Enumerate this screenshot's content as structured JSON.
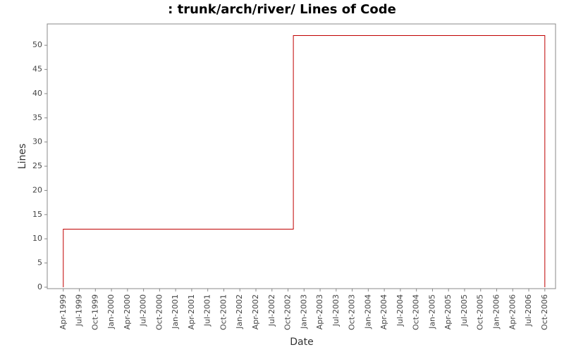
{
  "chart_data": {
    "type": "line",
    "title": ": trunk/arch/river/ Lines of Code",
    "x_label": "Date",
    "y_label": "Lines",
    "color": "#c00000",
    "x": [
      "1999-04",
      "1999-04",
      "2002-11",
      "2002-11",
      "2006-10",
      "2006-10"
    ],
    "values": [
      0,
      12,
      12,
      52,
      52,
      0
    ],
    "xlim": [
      "1999-01",
      "2006-12"
    ],
    "xticks": [
      {
        "value": "1999-04",
        "label": "Apr-1999"
      },
      {
        "value": "1999-07",
        "label": "Jul-1999"
      },
      {
        "value": "1999-10",
        "label": "Oct-1999"
      },
      {
        "value": "2000-01",
        "label": "Jan-2000"
      },
      {
        "value": "2000-04",
        "label": "Apr-2000"
      },
      {
        "value": "2000-07",
        "label": "Jul-2000"
      },
      {
        "value": "2000-10",
        "label": "Oct-2000"
      },
      {
        "value": "2001-01",
        "label": "Jan-2001"
      },
      {
        "value": "2001-04",
        "label": "Apr-2001"
      },
      {
        "value": "2001-07",
        "label": "Jul-2001"
      },
      {
        "value": "2001-10",
        "label": "Oct-2001"
      },
      {
        "value": "2002-01",
        "label": "Jan-2002"
      },
      {
        "value": "2002-04",
        "label": "Apr-2002"
      },
      {
        "value": "2002-07",
        "label": "Jul-2002"
      },
      {
        "value": "2002-10",
        "label": "Oct-2002"
      },
      {
        "value": "2003-01",
        "label": "Jan-2003"
      },
      {
        "value": "2003-04",
        "label": "Apr-2003"
      },
      {
        "value": "2003-07",
        "label": "Jul-2003"
      },
      {
        "value": "2003-10",
        "label": "Oct-2003"
      },
      {
        "value": "2004-01",
        "label": "Jan-2004"
      },
      {
        "value": "2004-04",
        "label": "Apr-2004"
      },
      {
        "value": "2004-07",
        "label": "Jul-2004"
      },
      {
        "value": "2004-10",
        "label": "Oct-2004"
      },
      {
        "value": "2005-01",
        "label": "Jan-2005"
      },
      {
        "value": "2005-04",
        "label": "Apr-2005"
      },
      {
        "value": "2005-07",
        "label": "Jul-2005"
      },
      {
        "value": "2005-10",
        "label": "Oct-2005"
      },
      {
        "value": "2006-01",
        "label": "Jan-2006"
      },
      {
        "value": "2006-04",
        "label": "Apr-2006"
      },
      {
        "value": "2006-07",
        "label": "Jul-2006"
      },
      {
        "value": "2006-10",
        "label": "Oct-2006"
      }
    ],
    "ylim": [
      -0.3,
      54.4
    ],
    "yticks": [
      0,
      5,
      10,
      15,
      20,
      25,
      30,
      35,
      40,
      45,
      50
    ],
    "grid": false
  }
}
